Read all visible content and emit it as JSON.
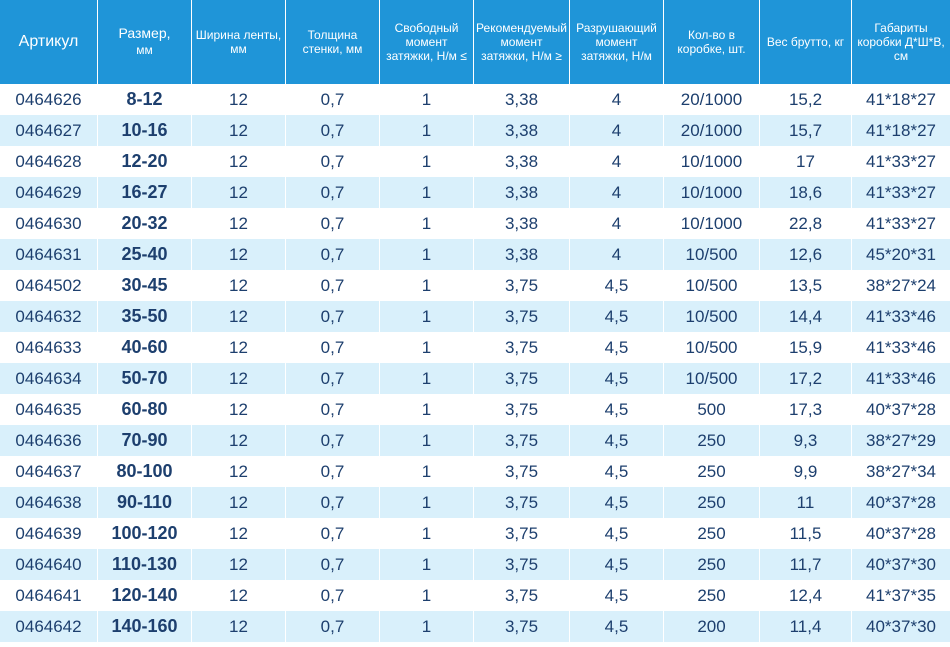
{
  "headers": {
    "article": "Артикул",
    "size": "Размер,",
    "size_unit": "мм",
    "band_width": "Ширина ленты, мм",
    "wall_thickness": "Толщина стенки, мм",
    "free_torque": "Свободный момент затяжки, Н/м ≤",
    "rec_torque": "Рекомендуемый момент затяжки, Н/м ≥",
    "break_torque": "Разрушающий момент затяжки, Н/м",
    "qty": "Кол-во в коробке, шт.",
    "weight": "Вес брутто, кг",
    "box": "Габариты коробки Д*Ш*В, см"
  },
  "rows": [
    {
      "article": "0464626",
      "size": "8-12",
      "width": "12",
      "thickness": "0,7",
      "free": "1",
      "rec": "3,38",
      "break": "4",
      "qty": "20/1000",
      "weight": "15,2",
      "box": "41*18*27"
    },
    {
      "article": "0464627",
      "size": "10-16",
      "width": "12",
      "thickness": "0,7",
      "free": "1",
      "rec": "3,38",
      "break": "4",
      "qty": "20/1000",
      "weight": "15,7",
      "box": "41*18*27"
    },
    {
      "article": "0464628",
      "size": "12-20",
      "width": "12",
      "thickness": "0,7",
      "free": "1",
      "rec": "3,38",
      "break": "4",
      "qty": "10/1000",
      "weight": "17",
      "box": "41*33*27"
    },
    {
      "article": "0464629",
      "size": "16-27",
      "width": "12",
      "thickness": "0,7",
      "free": "1",
      "rec": "3,38",
      "break": "4",
      "qty": "10/1000",
      "weight": "18,6",
      "box": "41*33*27"
    },
    {
      "article": "0464630",
      "size": "20-32",
      "width": "12",
      "thickness": "0,7",
      "free": "1",
      "rec": "3,38",
      "break": "4",
      "qty": "10/1000",
      "weight": "22,8",
      "box": "41*33*27"
    },
    {
      "article": "0464631",
      "size": "25-40",
      "width": "12",
      "thickness": "0,7",
      "free": "1",
      "rec": "3,38",
      "break": "4",
      "qty": "10/500",
      "weight": "12,6",
      "box": "45*20*31"
    },
    {
      "article": "0464502",
      "size": "30-45",
      "width": "12",
      "thickness": "0,7",
      "free": "1",
      "rec": "3,75",
      "break": "4,5",
      "qty": "10/500",
      "weight": "13,5",
      "box": "38*27*24"
    },
    {
      "article": "0464632",
      "size": "35-50",
      "width": "12",
      "thickness": "0,7",
      "free": "1",
      "rec": "3,75",
      "break": "4,5",
      "qty": "10/500",
      "weight": "14,4",
      "box": "41*33*46"
    },
    {
      "article": "0464633",
      "size": "40-60",
      "width": "12",
      "thickness": "0,7",
      "free": "1",
      "rec": "3,75",
      "break": "4,5",
      "qty": "10/500",
      "weight": "15,9",
      "box": "41*33*46"
    },
    {
      "article": "0464634",
      "size": "50-70",
      "width": "12",
      "thickness": "0,7",
      "free": "1",
      "rec": "3,75",
      "break": "4,5",
      "qty": "10/500",
      "weight": "17,2",
      "box": "41*33*46"
    },
    {
      "article": "0464635",
      "size": "60-80",
      "width": "12",
      "thickness": "0,7",
      "free": "1",
      "rec": "3,75",
      "break": "4,5",
      "qty": "500",
      "weight": "17,3",
      "box": "40*37*28"
    },
    {
      "article": "0464636",
      "size": "70-90",
      "width": "12",
      "thickness": "0,7",
      "free": "1",
      "rec": "3,75",
      "break": "4,5",
      "qty": "250",
      "weight": "9,3",
      "box": "38*27*29"
    },
    {
      "article": "0464637",
      "size": "80-100",
      "width": "12",
      "thickness": "0,7",
      "free": "1",
      "rec": "3,75",
      "break": "4,5",
      "qty": "250",
      "weight": "9,9",
      "box": "38*27*34"
    },
    {
      "article": "0464638",
      "size": "90-110",
      "width": "12",
      "thickness": "0,7",
      "free": "1",
      "rec": "3,75",
      "break": "4,5",
      "qty": "250",
      "weight": "11",
      "box": "40*37*28"
    },
    {
      "article": "0464639",
      "size": "100-120",
      "width": "12",
      "thickness": "0,7",
      "free": "1",
      "rec": "3,75",
      "break": "4,5",
      "qty": "250",
      "weight": "11,5",
      "box": "40*37*28"
    },
    {
      "article": "0464640",
      "size": "110-130",
      "width": "12",
      "thickness": "0,7",
      "free": "1",
      "rec": "3,75",
      "break": "4,5",
      "qty": "250",
      "weight": "11,7",
      "box": "40*37*30"
    },
    {
      "article": "0464641",
      "size": "120-140",
      "width": "12",
      "thickness": "0,7",
      "free": "1",
      "rec": "3,75",
      "break": "4,5",
      "qty": "250",
      "weight": "12,4",
      "box": "41*37*35"
    },
    {
      "article": "0464642",
      "size": "140-160",
      "width": "12",
      "thickness": "0,7",
      "free": "1",
      "rec": "3,75",
      "break": "4,5",
      "qty": "200",
      "weight": "11,4",
      "box": "40*37*30"
    }
  ]
}
